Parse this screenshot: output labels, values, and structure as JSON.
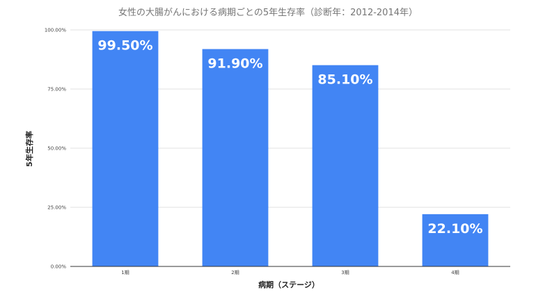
{
  "chart_data": {
    "type": "bar",
    "title": "女性の大腸がんにおける病期ごとの5年生存率（診断年：2012-2014年）",
    "xlabel": "病期（ステージ）",
    "ylabel": "5年生存率",
    "categories": [
      "1期",
      "2期",
      "3期",
      "4期"
    ],
    "values": [
      99.5,
      91.9,
      85.1,
      22.1
    ],
    "data_labels": [
      "99.50%",
      "91.90%",
      "85.10%",
      "22.10%"
    ],
    "y_ticks": [
      0,
      25,
      50,
      75,
      100
    ],
    "y_tick_labels": [
      "0.00%",
      "25.00%",
      "50.00%",
      "75.00%",
      "100.00%"
    ],
    "ylim": [
      0,
      100
    ],
    "grid": true,
    "legend": "none",
    "bar_color": "#4285f4"
  }
}
